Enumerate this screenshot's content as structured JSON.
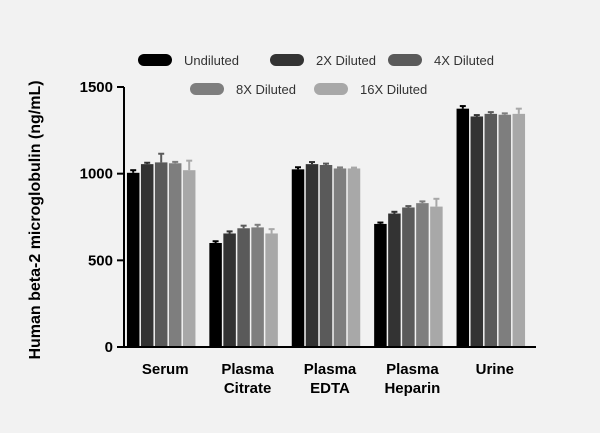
{
  "chart_data": {
    "type": "bar",
    "title": "",
    "xlabel": "",
    "ylabel": "Human beta-2 microglobulin (ng/mL)",
    "ylim": [
      0,
      1500
    ],
    "yticks": [
      0,
      500,
      1000,
      1500
    ],
    "grid": false,
    "legend_position": "top",
    "categories": [
      [
        "Serum"
      ],
      [
        "Plasma",
        "Citrate"
      ],
      [
        "Plasma",
        "EDTA"
      ],
      [
        "Plasma",
        "Heparin"
      ],
      [
        "Urine"
      ]
    ],
    "series": [
      {
        "name": "Undiluted",
        "color": "#000000",
        "values": [
          1005,
          600,
          1025,
          710,
          1375
        ],
        "errors": [
          15,
          10,
          12,
          8,
          15
        ]
      },
      {
        "name": "2X Diluted",
        "color": "#333333",
        "values": [
          1055,
          655,
          1055,
          770,
          1330
        ],
        "errors": [
          8,
          12,
          12,
          10,
          8
        ]
      },
      {
        "name": "4X Diluted",
        "color": "#5a5a5a",
        "values": [
          1065,
          685,
          1050,
          805,
          1345
        ],
        "errors": [
          50,
          15,
          8,
          8,
          10
        ]
      },
      {
        "name": "8X Diluted",
        "color": "#7e7e7e",
        "values": [
          1060,
          690,
          1030,
          830,
          1340
        ],
        "errors": [
          8,
          15,
          6,
          10,
          8
        ]
      },
      {
        "name": "16X Diluted",
        "color": "#a8a8a8",
        "values": [
          1020,
          655,
          1030,
          810,
          1345
        ],
        "errors": [
          55,
          25,
          5,
          45,
          30
        ]
      }
    ]
  }
}
